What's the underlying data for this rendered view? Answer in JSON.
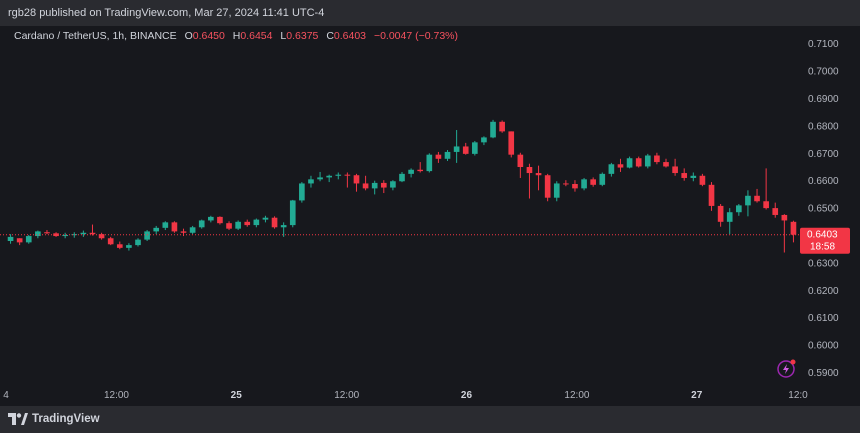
{
  "header": {
    "published": "rgb28 published on TradingView.com, Mar 27, 2024 11:41 UTC-4"
  },
  "symbol": {
    "name": "Cardano / TetherUS, 1h, BINANCE",
    "o_label": "O",
    "o_value": "0.6450",
    "h_label": "H",
    "h_value": "0.6454",
    "l_label": "L",
    "l_value": "0.6375",
    "c_label": "C",
    "c_value": "0.6403",
    "change": "−0.0047 (−0.73%)"
  },
  "price_label": {
    "value": "0.6403",
    "countdown": "18:58"
  },
  "footer": {
    "brand": "TradingView"
  },
  "icons": [
    "lightning-icon",
    "tradingview-logo-icon"
  ],
  "colors": {
    "up": "#22ab94",
    "down": "#f23645",
    "background": "#17181d",
    "last_price_line": "#f23645"
  },
  "chart_data": {
    "type": "candlestick",
    "y_range": [
      0.588,
      0.715
    ],
    "y_ticks": [
      "0.7100",
      "0.7000",
      "0.6900",
      "0.6800",
      "0.6700",
      "0.6600",
      "0.6500",
      "0.6400",
      "0.6300",
      "0.6200",
      "0.6100",
      "0.6000",
      "0.5900"
    ],
    "x_ticks": [
      {
        "label": "4",
        "pos": 0,
        "bold": false
      },
      {
        "label": "12:00",
        "pos": 0.1395,
        "bold": false
      },
      {
        "label": "25",
        "pos": 0.2907,
        "bold": true
      },
      {
        "label": "12:00",
        "pos": 0.4302,
        "bold": false
      },
      {
        "label": "26",
        "pos": 0.5814,
        "bold": true
      },
      {
        "label": "12:00",
        "pos": 0.7209,
        "bold": false
      },
      {
        "label": "27",
        "pos": 0.8721,
        "bold": true
      },
      {
        "label": "12:0",
        "pos": 1.0,
        "bold": false
      }
    ],
    "last_price": 0.6403,
    "grid": false,
    "candles": [
      [
        0.638,
        0.6405,
        0.637,
        0.6395
      ],
      [
        0.639,
        0.639,
        0.6365,
        0.6375
      ],
      [
        0.6375,
        0.6402,
        0.637,
        0.6398
      ],
      [
        0.6398,
        0.6418,
        0.639,
        0.6415
      ],
      [
        0.6412,
        0.642,
        0.6405,
        0.6408
      ],
      [
        0.6408,
        0.6412,
        0.6395,
        0.6398
      ],
      [
        0.6398,
        0.641,
        0.639,
        0.6402
      ],
      [
        0.6402,
        0.6412,
        0.6392,
        0.6405
      ],
      [
        0.6405,
        0.6418,
        0.6395,
        0.641
      ],
      [
        0.641,
        0.644,
        0.64,
        0.6405
      ],
      [
        0.6405,
        0.641,
        0.6385,
        0.639
      ],
      [
        0.639,
        0.6395,
        0.6365,
        0.6368
      ],
      [
        0.6368,
        0.6378,
        0.635,
        0.6355
      ],
      [
        0.6355,
        0.6372,
        0.6345,
        0.6365
      ],
      [
        0.6365,
        0.639,
        0.636,
        0.6385
      ],
      [
        0.6385,
        0.642,
        0.638,
        0.6415
      ],
      [
        0.6415,
        0.6435,
        0.6405,
        0.6428
      ],
      [
        0.6428,
        0.6452,
        0.642,
        0.6448
      ],
      [
        0.6448,
        0.6452,
        0.641,
        0.6415
      ],
      [
        0.6415,
        0.6425,
        0.6398,
        0.641
      ],
      [
        0.641,
        0.6435,
        0.6405,
        0.643
      ],
      [
        0.643,
        0.6458,
        0.6425,
        0.6455
      ],
      [
        0.6455,
        0.6472,
        0.6448,
        0.6468
      ],
      [
        0.6468,
        0.647,
        0.644,
        0.6445
      ],
      [
        0.6445,
        0.6452,
        0.642,
        0.6425
      ],
      [
        0.6425,
        0.6455,
        0.642,
        0.645
      ],
      [
        0.645,
        0.6458,
        0.6432,
        0.6438
      ],
      [
        0.6438,
        0.6462,
        0.643,
        0.6458
      ],
      [
        0.6458,
        0.6472,
        0.6448,
        0.6465
      ],
      [
        0.6465,
        0.647,
        0.6425,
        0.643
      ],
      [
        0.643,
        0.6448,
        0.6395,
        0.6438
      ],
      [
        0.6438,
        0.653,
        0.643,
        0.6528
      ],
      [
        0.6528,
        0.6595,
        0.652,
        0.659
      ],
      [
        0.659,
        0.6618,
        0.6575,
        0.6605
      ],
      [
        0.6605,
        0.6632,
        0.6598,
        0.6612
      ],
      [
        0.6612,
        0.6622,
        0.6595,
        0.6618
      ],
      [
        0.6618,
        0.663,
        0.6605,
        0.6622
      ],
      [
        0.6622,
        0.663,
        0.6575,
        0.662
      ],
      [
        0.662,
        0.6625,
        0.656,
        0.659
      ],
      [
        0.659,
        0.6618,
        0.6565,
        0.6572
      ],
      [
        0.6572,
        0.66,
        0.655,
        0.6592
      ],
      [
        0.6592,
        0.6602,
        0.6555,
        0.6575
      ],
      [
        0.6575,
        0.6602,
        0.6565,
        0.6598
      ],
      [
        0.6598,
        0.6632,
        0.6595,
        0.6625
      ],
      [
        0.6625,
        0.6645,
        0.6612,
        0.664
      ],
      [
        0.664,
        0.6668,
        0.663,
        0.6635
      ],
      [
        0.6635,
        0.67,
        0.663,
        0.6695
      ],
      [
        0.6695,
        0.6705,
        0.6665,
        0.668
      ],
      [
        0.668,
        0.6712,
        0.6672,
        0.6705
      ],
      [
        0.6705,
        0.6785,
        0.6665,
        0.6725
      ],
      [
        0.6725,
        0.6738,
        0.6695,
        0.6698
      ],
      [
        0.6698,
        0.6745,
        0.6692,
        0.674
      ],
      [
        0.674,
        0.6762,
        0.673,
        0.6758
      ],
      [
        0.6758,
        0.6822,
        0.6755,
        0.6815
      ],
      [
        0.6815,
        0.682,
        0.6775,
        0.678
      ],
      [
        0.678,
        0.678,
        0.6685,
        0.6695
      ],
      [
        0.6695,
        0.6702,
        0.661,
        0.665
      ],
      [
        0.665,
        0.6662,
        0.6535,
        0.6628
      ],
      [
        0.6628,
        0.6655,
        0.6565,
        0.662
      ],
      [
        0.662,
        0.6625,
        0.6525,
        0.6538
      ],
      [
        0.6538,
        0.6598,
        0.6525,
        0.659
      ],
      [
        0.659,
        0.6602,
        0.658,
        0.6588
      ],
      [
        0.6588,
        0.6602,
        0.656,
        0.6572
      ],
      [
        0.6572,
        0.661,
        0.6565,
        0.6605
      ],
      [
        0.6605,
        0.6612,
        0.6578,
        0.6585
      ],
      [
        0.6585,
        0.663,
        0.658,
        0.6625
      ],
      [
        0.6625,
        0.6665,
        0.6615,
        0.666
      ],
      [
        0.666,
        0.668,
        0.6632,
        0.6648
      ],
      [
        0.6648,
        0.6688,
        0.6645,
        0.6682
      ],
      [
        0.6682,
        0.6688,
        0.6648,
        0.6652
      ],
      [
        0.6652,
        0.6698,
        0.6645,
        0.6692
      ],
      [
        0.6692,
        0.6702,
        0.666,
        0.6668
      ],
      [
        0.6668,
        0.668,
        0.6648,
        0.6652
      ],
      [
        0.6652,
        0.668,
        0.6618,
        0.6628
      ],
      [
        0.6628,
        0.6645,
        0.66,
        0.661
      ],
      [
        0.661,
        0.663,
        0.6598,
        0.6618
      ],
      [
        0.6618,
        0.6625,
        0.658,
        0.6585
      ],
      [
        0.6585,
        0.6595,
        0.649,
        0.6508
      ],
      [
        0.6508,
        0.6515,
        0.6432,
        0.645
      ],
      [
        0.645,
        0.65,
        0.6405,
        0.6485
      ],
      [
        0.6485,
        0.6515,
        0.6472,
        0.651
      ],
      [
        0.651,
        0.6565,
        0.647,
        0.6545
      ],
      [
        0.6545,
        0.657,
        0.652,
        0.6525
      ],
      [
        0.6525,
        0.6645,
        0.6495,
        0.65
      ],
      [
        0.65,
        0.652,
        0.6465,
        0.6475
      ],
      [
        0.6475,
        0.6478,
        0.6338,
        0.6455
      ],
      [
        0.645,
        0.6454,
        0.6375,
        0.6403
      ]
    ]
  }
}
